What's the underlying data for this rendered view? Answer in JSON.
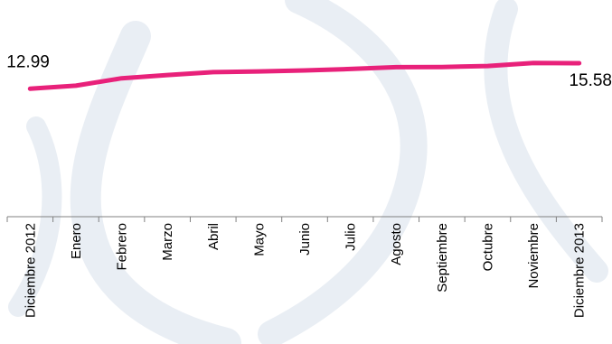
{
  "chart_data": {
    "type": "line",
    "categories": [
      "Diciembre 2012",
      "Enero",
      "Febrero",
      "Marzo",
      "Abril",
      "Mayo",
      "Junio",
      "Julio",
      "Agosto",
      "Septiembre",
      "Octubre",
      "Noviembre",
      "Diciembre 2013"
    ],
    "series": [
      {
        "values": [
          12.99,
          13.3,
          14.05,
          14.38,
          14.68,
          14.75,
          14.85,
          15.0,
          15.18,
          15.2,
          15.3,
          15.6,
          15.58
        ]
      }
    ],
    "data_labels": {
      "first": "12.99",
      "last": "15.58"
    },
    "ylim": [
      0,
      22
    ],
    "line_color": "#e8217a",
    "axis_color": "#808080",
    "grid": false,
    "legend": "none",
    "title": "",
    "xlabel": "",
    "ylabel": ""
  }
}
